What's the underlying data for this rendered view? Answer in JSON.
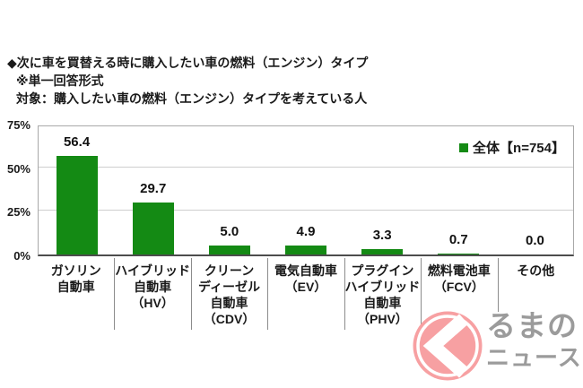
{
  "header": {
    "title": "◆次に車を買替える時に購入したい車の燃料（エンジン）タイプ",
    "note_format": "※単一回答形式",
    "note_target": "対象：購入したい車の燃料（エンジン）タイプを考えている人"
  },
  "chart_data": {
    "type": "bar",
    "title": "次に車を買替える時に購入したい車の燃料（エンジン）タイプ",
    "legend": {
      "label": "全体【n=754】",
      "position": "top-right"
    },
    "categories": [
      "ガソリン自動車",
      "ハイブリッド自動車（HV）",
      "クリーンディーゼル自動車（CDV）",
      "電気自動車（EV）",
      "プラグインハイブリッド自動車（PHV）",
      "燃料電池車（FCV）",
      "その他"
    ],
    "category_lines": [
      [
        "ガソリン",
        "自動車"
      ],
      [
        "ハイブリッド",
        "自動車",
        "（HV）"
      ],
      [
        "クリーン",
        "ディーゼル",
        "自動車",
        "（CDV）"
      ],
      [
        "電気自動車",
        "（EV）"
      ],
      [
        "プラグイン",
        "ハイブリッド",
        "自動車",
        "（PHV）"
      ],
      [
        "燃料電池車",
        "（FCV）"
      ],
      [
        "その他"
      ]
    ],
    "values": [
      56.4,
      29.7,
      5.0,
      4.9,
      3.3,
      0.7,
      0.0
    ],
    "value_labels": [
      "56.4",
      "29.7",
      "5.0",
      "4.9",
      "3.3",
      "0.7",
      "0.0"
    ],
    "xlabel": "",
    "ylabel": "",
    "ylim": [
      0,
      75
    ],
    "yticks": [
      {
        "label": "75%",
        "value": 75
      },
      {
        "label": "50%",
        "value": 50
      },
      {
        "label": "25%",
        "value": 25
      },
      {
        "label": "0%",
        "value": 0
      }
    ],
    "grid": "horizontal",
    "gridline_values": [
      25,
      50
    ],
    "bar_color": "#148a14"
  },
  "logo": {
    "mark": "ku-circle-mark",
    "line1": "るまの",
    "line2": "ニュース",
    "circle_color": "#f7a0a2",
    "text_color": "#9b9b9b"
  }
}
